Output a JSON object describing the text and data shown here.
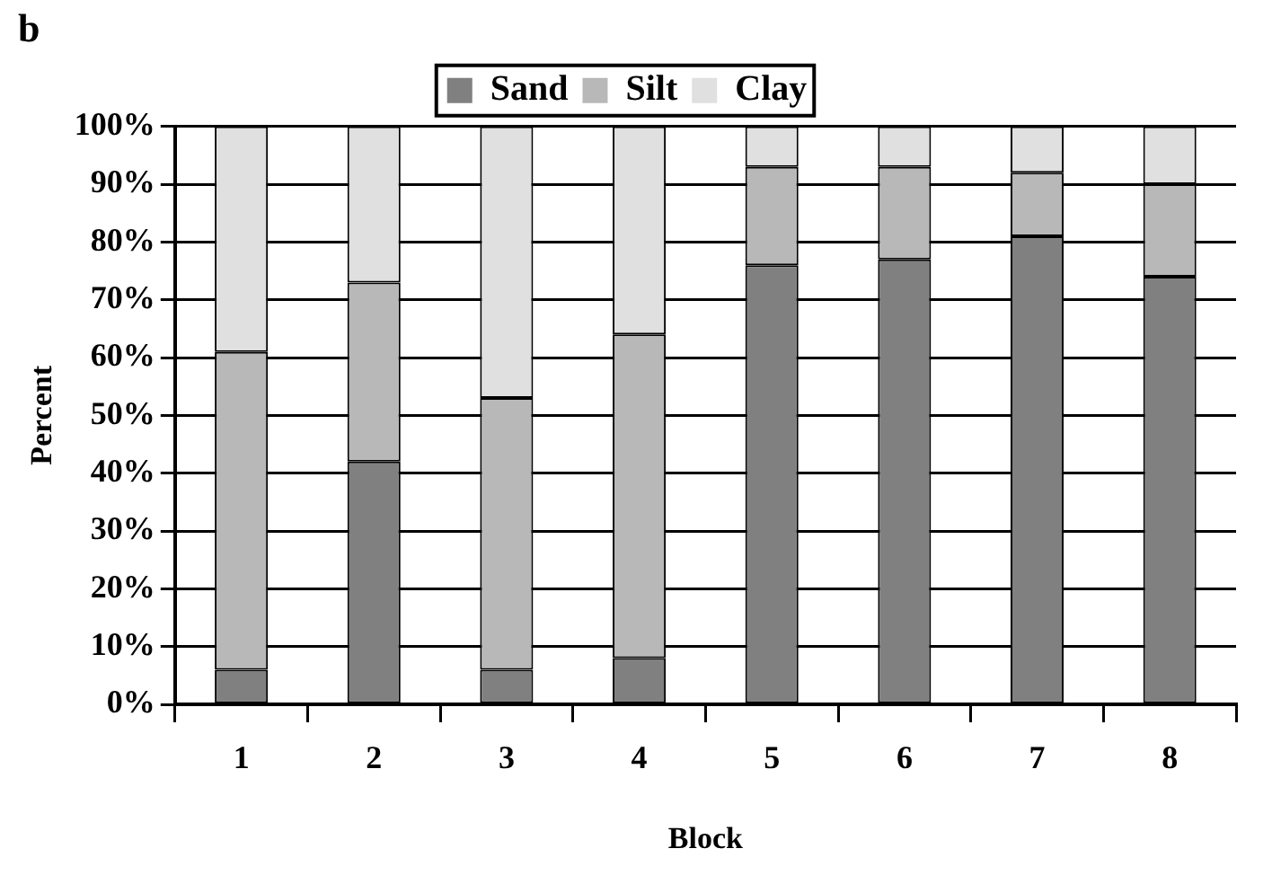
{
  "chart_data": {
    "type": "bar",
    "stacked": true,
    "title": "b",
    "xlabel": "Block",
    "ylabel": "Percent",
    "categories": [
      "1",
      "2",
      "3",
      "4",
      "5",
      "6",
      "7",
      "8"
    ],
    "series": [
      {
        "name": "Sand",
        "color": "#808080",
        "values": [
          6,
          42,
          6,
          8,
          76,
          77,
          81,
          74
        ]
      },
      {
        "name": "Silt",
        "color": "#b8b8b8",
        "values": [
          55,
          31,
          47,
          56,
          17,
          16,
          11,
          16
        ]
      },
      {
        "name": "Clay",
        "color": "#e0e0e0",
        "values": [
          39,
          27,
          47,
          36,
          7,
          7,
          8,
          10
        ]
      }
    ],
    "ylim": [
      0,
      100
    ],
    "yticks": [
      {
        "value": 0,
        "label": "0%"
      },
      {
        "value": 10,
        "label": "10%"
      },
      {
        "value": 20,
        "label": "20%"
      },
      {
        "value": 30,
        "label": "30%"
      },
      {
        "value": 40,
        "label": "40%"
      },
      {
        "value": 50,
        "label": "50%"
      },
      {
        "value": 60,
        "label": "60%"
      },
      {
        "value": 70,
        "label": "70%"
      },
      {
        "value": 80,
        "label": "80%"
      },
      {
        "value": 90,
        "label": "90%"
      },
      {
        "value": 100,
        "label": "100%"
      }
    ],
    "grid": "y",
    "legend": "top"
  }
}
